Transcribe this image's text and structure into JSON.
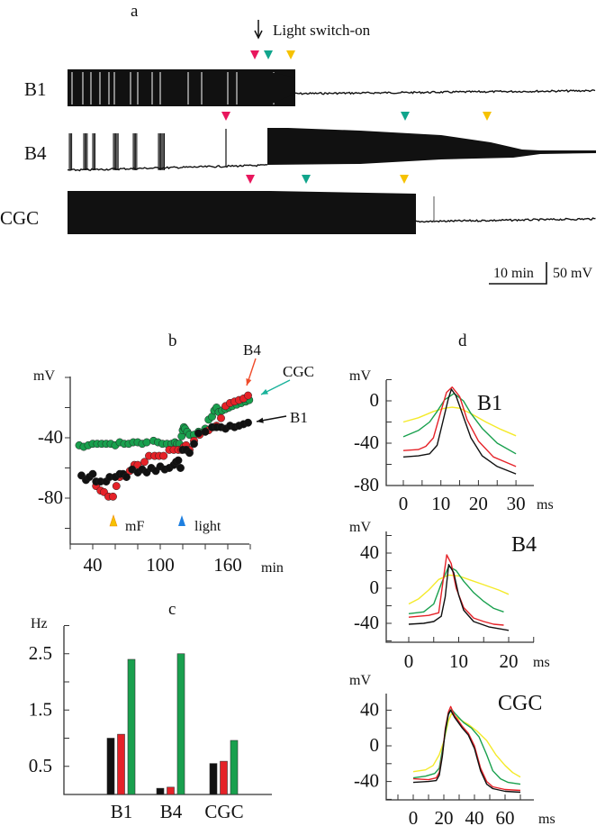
{
  "colors": {
    "black": "#111111",
    "red": "#e52228",
    "green": "#19a04e",
    "yellow": "#f4ea2a",
    "marker_red": "#e8175d",
    "marker_teal": "#10a58c",
    "marker_yellow": "#f6c200",
    "light_blue": "#1e7fe0",
    "arrow_red": "#ef4b2a",
    "arrow_teal": "#1ab39b"
  },
  "panel_a": {
    "label": "a",
    "annotation": "Light switch-on",
    "traces": [
      "B1",
      "B4",
      "CGC"
    ],
    "scale_time": "10 min",
    "scale_voltage": "50 mV",
    "marker_colors": [
      "red",
      "teal",
      "yellow"
    ]
  },
  "chart_data": [
    {
      "panel": "b",
      "type": "scatter",
      "ylabel": "mV",
      "xlabel": "min",
      "xlim": [
        20,
        185
      ],
      "ylim": [
        -110,
        0
      ],
      "xticks": [
        40,
        100,
        160
      ],
      "yticks": [
        -40,
        -80
      ],
      "grid": false,
      "annotations": [
        {
          "text": "mF",
          "x": 60,
          "color": "yellow"
        },
        {
          "text": "light",
          "x": 120,
          "color": "blue"
        }
      ],
      "series": [
        {
          "name": "CGC",
          "color": "green",
          "x": [
            28,
            32,
            36,
            40,
            44,
            48,
            52,
            56,
            60,
            64,
            68,
            72,
            76,
            80,
            84,
            88,
            94,
            98,
            102,
            106,
            110,
            113,
            115,
            117,
            119,
            120,
            121,
            122,
            124,
            126,
            130,
            134,
            140,
            143,
            146,
            148,
            150,
            152,
            155,
            158,
            161,
            164,
            168,
            172,
            176,
            179
          ],
          "y": [
            -45,
            -46,
            -45,
            -44,
            -44,
            -44,
            -44,
            -44,
            -45,
            -43,
            -44,
            -44,
            -43,
            -43,
            -44,
            -43,
            -42,
            -43,
            -44,
            -44,
            -44,
            -43,
            -44,
            -44,
            -39,
            -35,
            -33,
            -34,
            -36,
            -38,
            -38,
            -36,
            -34,
            -28,
            -26,
            -22,
            -20,
            -23,
            -22,
            -21,
            -20,
            -19,
            -18,
            -17,
            -16,
            -15
          ]
        },
        {
          "name": "B4",
          "color": "red",
          "x": [
            43,
            47,
            50,
            54,
            58,
            61,
            64,
            67,
            73,
            77,
            80,
            86,
            90,
            95,
            99,
            103,
            108,
            112,
            116,
            119,
            121,
            123,
            126,
            130,
            135,
            140,
            143,
            147,
            150,
            154,
            158,
            162,
            166,
            170,
            174,
            178
          ],
          "y": [
            -72,
            -75,
            -76,
            -79,
            -79,
            -72,
            -66,
            -65,
            -62,
            -58,
            -58,
            -56,
            -52,
            -52,
            -52,
            -52,
            -48,
            -48,
            -48,
            -48,
            -46,
            -45,
            -48,
            -42,
            -38,
            -36,
            -35,
            -33,
            -32,
            -27,
            -19,
            -17,
            -16,
            -15,
            -14,
            -12
          ]
        },
        {
          "name": "B1",
          "color": "black",
          "x": [
            30,
            34,
            37,
            40,
            43,
            47,
            52,
            55,
            60,
            64,
            67,
            70,
            75,
            80,
            84,
            88,
            92,
            96,
            100,
            104,
            108,
            112,
            114,
            116,
            118,
            120,
            123,
            126,
            130,
            134,
            140,
            146,
            150,
            154,
            158,
            162,
            166,
            170,
            174,
            178
          ],
          "y": [
            -65,
            -68,
            -66,
            -64,
            -69,
            -69,
            -69,
            -66,
            -66,
            -64,
            -64,
            -66,
            -61,
            -63,
            -61,
            -63,
            -60,
            -62,
            -59,
            -61,
            -60,
            -58,
            -56,
            -55,
            -60,
            -48,
            -48,
            -50,
            -44,
            -37,
            -36,
            -33,
            -33,
            -33,
            -34,
            -32,
            -33,
            -32,
            -31,
            -30
          ]
        }
      ]
    },
    {
      "panel": "c",
      "type": "bar",
      "ylabel": "Hz",
      "categories": [
        "B1",
        "B4",
        "CGC"
      ],
      "ylim": [
        0,
        3
      ],
      "yticks": [
        0.5,
        1.5,
        2.5
      ],
      "series": [
        {
          "color": "black",
          "values": [
            1.0,
            0.11,
            0.55
          ]
        },
        {
          "color": "red",
          "values": [
            1.07,
            0.13,
            0.59
          ]
        },
        {
          "color": "green",
          "values": [
            2.4,
            2.5,
            0.96
          ]
        }
      ]
    },
    {
      "panel": "d",
      "type": "line",
      "title": "B1",
      "ylabel": "mV",
      "xlabel": "ms",
      "xlim": [
        -5,
        35
      ],
      "ylim": [
        -80,
        20
      ],
      "xticks": [
        0,
        10,
        20,
        30
      ],
      "yticks": [
        0,
        -40,
        -80
      ],
      "series": [
        {
          "color": "yellow",
          "x": [
            0,
            4,
            8,
            11,
            13,
            15,
            18,
            22,
            26,
            30
          ],
          "y": [
            -20,
            -16,
            -10,
            -7,
            -6,
            -7,
            -12,
            -20,
            -27,
            -33
          ]
        },
        {
          "color": "green",
          "x": [
            0,
            4,
            7,
            9,
            11,
            13.5,
            16,
            18,
            21,
            25,
            30
          ],
          "y": [
            -34,
            -28,
            -20,
            -10,
            1,
            7,
            0,
            -12,
            -26,
            -40,
            -50
          ]
        },
        {
          "color": "red",
          "x": [
            0,
            4,
            6,
            8,
            10,
            11.5,
            13,
            15,
            17,
            20,
            24,
            30
          ],
          "y": [
            -47,
            -46,
            -43,
            -35,
            -10,
            8,
            13,
            4,
            -18,
            -38,
            -53,
            -62
          ]
        },
        {
          "color": "black",
          "x": [
            0,
            4,
            7,
            9,
            10.5,
            12,
            12.8,
            14,
            16,
            18,
            21,
            25,
            30
          ],
          "y": [
            -53,
            -52,
            -50,
            -42,
            -20,
            2,
            11,
            5,
            -15,
            -35,
            -52,
            -62,
            -69
          ]
        }
      ]
    },
    {
      "panel": "d",
      "type": "line",
      "title": "B4",
      "ylabel": "mV",
      "xlabel": "ms",
      "xlim": [
        -3,
        22
      ],
      "ylim": [
        -60,
        60
      ],
      "xticks": [
        0,
        10,
        20
      ],
      "yticks": [
        40,
        0,
        -40
      ],
      "series": [
        {
          "color": "yellow",
          "x": [
            0,
            2,
            4,
            6,
            8,
            10,
            12,
            15,
            18,
            20
          ],
          "y": [
            -18,
            -12,
            -2,
            10,
            15,
            14,
            10,
            4,
            -2,
            -7
          ]
        },
        {
          "color": "green",
          "x": [
            0,
            3,
            5,
            6.5,
            8,
            9.5,
            11,
            13,
            15,
            17,
            19
          ],
          "y": [
            -29,
            -27,
            -18,
            5,
            25,
            20,
            8,
            -5,
            -15,
            -23,
            -27
          ]
        },
        {
          "color": "red",
          "x": [
            0,
            4,
            6,
            6.8,
            7.6,
            8.5,
            9.5,
            11,
            13,
            15,
            17,
            19
          ],
          "y": [
            -33,
            -31,
            -28,
            5,
            38,
            28,
            0,
            -22,
            -34,
            -38,
            -41,
            -42
          ]
        },
        {
          "color": "black",
          "x": [
            0,
            3,
            5,
            6.5,
            7.3,
            8,
            9,
            10,
            11,
            13,
            16,
            20
          ],
          "y": [
            -41,
            -40,
            -38,
            -32,
            -10,
            27,
            18,
            -8,
            -25,
            -38,
            -44,
            -48
          ]
        }
      ]
    },
    {
      "panel": "d",
      "type": "line",
      "title": "CGC",
      "ylabel": "mV",
      "xlabel": "ms",
      "xlim": [
        -15,
        80
      ],
      "ylim": [
        -60,
        60
      ],
      "xticks": [
        0,
        20,
        40,
        60
      ],
      "yticks": [
        40,
        0,
        -40
      ],
      "series": [
        {
          "color": "yellow",
          "x": [
            0,
            8,
            13,
            17,
            20,
            23,
            25,
            30,
            36,
            42,
            48,
            54,
            60,
            65,
            70
          ],
          "y": [
            -29,
            -27,
            -22,
            -10,
            5,
            28,
            36,
            30,
            24,
            16,
            6,
            -10,
            -22,
            -30,
            -35
          ]
        },
        {
          "color": "green",
          "x": [
            0,
            8,
            14,
            17,
            20,
            23,
            25,
            28,
            33,
            38,
            43,
            48,
            52,
            57,
            62,
            70
          ],
          "y": [
            -36,
            -34,
            -31,
            -25,
            5,
            35,
            41,
            35,
            26,
            20,
            10,
            -10,
            -28,
            -37,
            -41,
            -43
          ]
        },
        {
          "color": "red",
          "x": [
            0,
            10,
            15,
            17,
            19,
            21,
            23,
            24.5,
            27,
            32,
            36,
            40,
            44,
            48,
            52,
            60,
            70
          ],
          "y": [
            -37,
            -38,
            -36,
            -30,
            -10,
            20,
            38,
            44,
            34,
            22,
            14,
            0,
            -25,
            -40,
            -46,
            -49,
            -50
          ]
        },
        {
          "color": "black",
          "x": [
            0,
            10,
            15,
            17,
            19,
            21,
            23,
            24.5,
            27,
            32,
            36,
            40,
            44,
            48,
            52,
            60,
            70
          ],
          "y": [
            -41,
            -40,
            -39,
            -33,
            -12,
            18,
            36,
            40,
            32,
            20,
            12,
            -3,
            -28,
            -43,
            -48,
            -51,
            -52
          ]
        }
      ]
    }
  ]
}
